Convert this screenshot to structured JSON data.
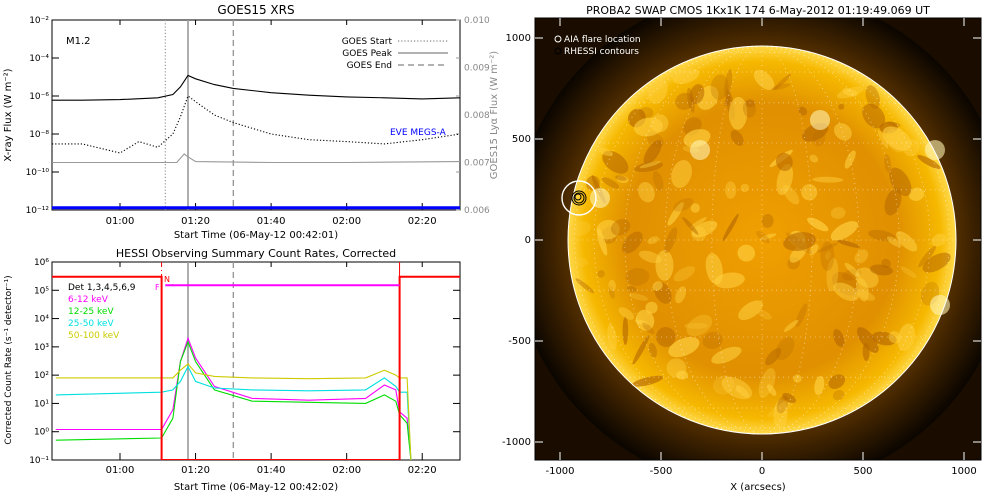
{
  "goes_panel": {
    "title": "GOES15 XRS",
    "flare_class": "M1.2",
    "ylabel_left": "X-ray Flux (W m⁻²)",
    "ylabel_right": "GOES15 Lyα Flux (W m⁻²)",
    "xlabel": "Start Time (06-May-12 00:42:01)",
    "legend": [
      {
        "label": "GOES Start",
        "style": "dotted",
        "color": "#999999"
      },
      {
        "label": "GOES Peak",
        "style": "solid",
        "color": "#999999"
      },
      {
        "label": "GOES End",
        "style": "dashed",
        "color": "#999999"
      }
    ],
    "eve_label": "EVE MEGS-A",
    "eve_color": "#0000ff"
  },
  "hessi_panel": {
    "title": "HESSI Observing Summary Count Rates, Corrected",
    "ylabel": "Corrected Count Rate (s⁻¹ detector⁻¹)",
    "xlabel": "Start Time (06-May-12 00:42:02)",
    "det_label": "Det 1,3,4,5,6,9",
    "legend": [
      {
        "label": "6-12 keV",
        "color": "#ff00ff"
      },
      {
        "label": "12-25 keV",
        "color": "#00dd00"
      },
      {
        "label": "25-50 keV",
        "color": "#00e0e0"
      },
      {
        "label": "50-100 keV",
        "color": "#cccc00"
      }
    ],
    "flag_n": "N",
    "flag_f": "F"
  },
  "image_panel": {
    "title": "PROBA2 SWAP CMOS 1Kx1K 174   6-May-2012 01:19:49.069 UT",
    "xlabel": "X (arcsecs)",
    "legend": [
      {
        "label": "AIA flare location"
      },
      {
        "label": "RHESSI contours"
      }
    ],
    "x_ticks": [
      "-1000",
      "-500",
      "0",
      "500",
      "1000"
    ],
    "y_ticks": [
      "1000",
      "500",
      "0",
      "-500",
      "-1000"
    ]
  },
  "chart_data": [
    {
      "type": "line",
      "title": "GOES15 XRS",
      "xlabel": "Start Time (06-May-12 00:42:01)",
      "ylabel": "X-ray Flux (W m⁻²)",
      "ylabel_right": "GOES15 Lyα Flux (W m⁻²)",
      "xlim": [
        "00:42",
        "02:30"
      ],
      "ylim": [
        1e-12,
        0.01
      ],
      "y_scale": "log",
      "ylim_right": [
        0.006,
        0.01
      ],
      "x_tick_labels": [
        "01:00",
        "01:20",
        "01:40",
        "02:00",
        "02:20"
      ],
      "y_tick_labels": [
        "10⁻¹²",
        "10⁻¹⁰",
        "10⁻⁸",
        "10⁻⁶",
        "10⁻⁴",
        "10⁻²"
      ],
      "y_tick_labels_right": [
        "0.006",
        "0.007",
        "0.008",
        "0.009",
        "0.010"
      ],
      "markers": {
        "goes_start": "01:12",
        "goes_peak": "01:18",
        "goes_end": "01:30"
      },
      "series": [
        {
          "name": "GOES long channel",
          "color": "#000000",
          "style": "solid",
          "x": [
            "00:42",
            "00:50",
            "01:00",
            "01:10",
            "01:14",
            "01:16",
            "01:18",
            "01:20",
            "01:25",
            "01:30",
            "01:40",
            "01:50",
            "02:00",
            "02:10",
            "02:20",
            "02:30"
          ],
          "values": [
            6e-07,
            6e-07,
            6.5e-07,
            8e-07,
            1.2e-06,
            3e-06,
            1.2e-05,
            8e-06,
            4e-06,
            2.5e-06,
            1.5e-06,
            1.1e-06,
            9e-07,
            8e-07,
            7e-07,
            8e-07
          ]
        },
        {
          "name": "GOES short channel",
          "color": "#000000",
          "style": "dotted",
          "x": [
            "00:42",
            "00:50",
            "01:00",
            "01:05",
            "01:10",
            "01:14",
            "01:16",
            "01:18",
            "01:20",
            "01:25",
            "01:30",
            "01:40",
            "01:50",
            "02:00",
            "02:10",
            "02:20",
            "02:30"
          ],
          "values": [
            3e-09,
            3e-09,
            1e-09,
            4e-09,
            2e-09,
            1e-08,
            8e-08,
            1e-06,
            5e-07,
            1e-07,
            4e-08,
            1e-08,
            5e-09,
            4e-09,
            3e-09,
            5e-09,
            1e-08
          ]
        },
        {
          "name": "GOES15 Lyα",
          "color": "#999999",
          "style": "solid",
          "x": [
            "00:42",
            "01:00",
            "01:15",
            "01:17",
            "01:18",
            "01:20",
            "01:40",
            "02:00",
            "02:30"
          ],
          "values_right_axis": [
            0.007,
            0.007,
            0.007,
            0.00718,
            0.00712,
            0.00702,
            0.007,
            0.007,
            0.00702
          ]
        },
        {
          "name": "EVE MEGS-A",
          "color": "#0000ff",
          "style": "solid",
          "x": [
            "00:42",
            "02:30"
          ],
          "values": [
            1.3e-12,
            1.3e-12
          ]
        }
      ]
    },
    {
      "type": "line",
      "title": "HESSI Observing Summary Count Rates, Corrected",
      "xlabel": "Start Time (06-May-12 00:42:02)",
      "ylabel": "Corrected Count Rate (s⁻¹ detector⁻¹)",
      "xlim": [
        "00:42",
        "02:30"
      ],
      "ylim": [
        0.1,
        1000000.0
      ],
      "y_scale": "log",
      "x_tick_labels": [
        "01:00",
        "01:20",
        "01:40",
        "02:00",
        "02:20"
      ],
      "y_tick_labels": [
        "10⁻¹",
        "10⁰",
        "10¹",
        "10²",
        "10³",
        "10⁴",
        "10⁵",
        "10⁶"
      ],
      "markers": {
        "goes_peak": "01:18",
        "goes_end": "01:30",
        "attenuator_start": "01:11",
        "attenuator_end": "02:14"
      },
      "series": [
        {
          "name": "6-12 keV",
          "color": "#ff00ff",
          "x": [
            "00:43",
            "01:11",
            "01:14",
            "01:16",
            "01:18",
            "01:20",
            "01:25",
            "01:35",
            "01:50",
            "02:05",
            "02:10",
            "02:13",
            "02:14",
            "02:16",
            "02:17"
          ],
          "values": [
            1.2,
            1.2,
            6,
            300,
            2000,
            400,
            40,
            15,
            13,
            15,
            45,
            30,
            5,
            3,
            0.1
          ]
        },
        {
          "name": "12-25 keV",
          "color": "#00dd00",
          "x": [
            "00:43",
            "01:11",
            "01:14",
            "01:16",
            "01:18",
            "01:20",
            "01:25",
            "01:35",
            "01:50",
            "02:05",
            "02:10",
            "02:13",
            "02:14",
            "02:16",
            "02:17"
          ],
          "values": [
            0.5,
            0.6,
            3,
            300,
            1500,
            300,
            30,
            12,
            11,
            10,
            20,
            12,
            4,
            2,
            0.1
          ]
        },
        {
          "name": "25-50 keV",
          "color": "#00e0e0",
          "x": [
            "00:43",
            "01:11",
            "01:14",
            "01:16",
            "01:18",
            "01:20",
            "01:25",
            "01:35",
            "01:50",
            "02:05",
            "02:10",
            "02:13",
            "02:14",
            "02:16",
            "02:17"
          ],
          "values": [
            20,
            25,
            30,
            60,
            200,
            60,
            35,
            30,
            28,
            30,
            80,
            40,
            25,
            25,
            0.1
          ]
        },
        {
          "name": "50-100 keV",
          "color": "#cccc00",
          "x": [
            "00:43",
            "01:11",
            "01:14",
            "01:16",
            "01:18",
            "01:20",
            "01:25",
            "01:35",
            "01:50",
            "02:05",
            "02:10",
            "02:13",
            "02:14",
            "02:16",
            "02:17"
          ],
          "values": [
            80,
            80,
            80,
            150,
            250,
            120,
            90,
            80,
            75,
            80,
            150,
            100,
            80,
            80,
            0.1
          ]
        },
        {
          "name": "attenuator state",
          "color": "#ff0000",
          "x": [
            "00:42",
            "01:11",
            "01:11",
            "02:14",
            "02:14",
            "02:30"
          ],
          "values": [
            300000.0,
            300000.0,
            0.1,
            0.1,
            300000.0,
            300000.0
          ]
        },
        {
          "name": "flare flag",
          "color": "#ff00ff",
          "x": [
            "01:12",
            "02:14"
          ],
          "values": [
            150000.0,
            150000.0
          ]
        }
      ]
    }
  ]
}
